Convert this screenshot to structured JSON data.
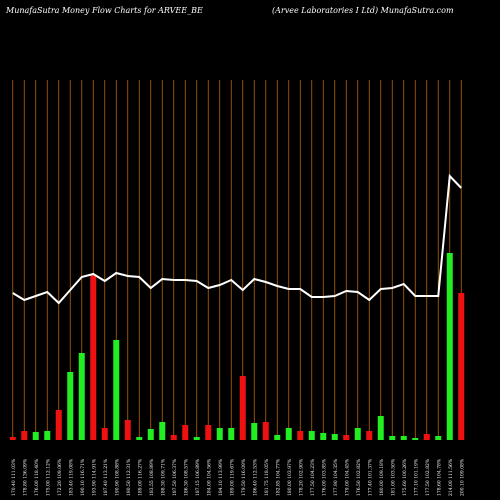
{
  "chart_data": {
    "type": "bar",
    "title": "MunafaSutra  Money Flow  Charts for ARVEE_BE",
    "subtitle": "(Arvee   Laboratories I Ltd) MunafaSutra.com",
    "categories": [
      "170.40 111.03%",
      "178.80 136.09%",
      "176.00 118.40%",
      "175.00 112.12%",
      "172.20 109.06%",
      "183.40 119.08%",
      "190.10 116.71%",
      "193.90 114.91%",
      "187.40 113.21%",
      "190.90 108.88%",
      "190.50 112.31%",
      "189.00 116.27%",
      "183.55 108.89%",
      "188.30 109.71%",
      "187.50 106.37%",
      "186.30 108.57%",
      "187.15 106.89%",
      "184.00 104.56%",
      "184.10 113.99%",
      "189.00 119.67%",
      "179.50 116.09%",
      "186.40 112.53%",
      "181.75 118.05%",
      "182.85 104.77%",
      "180.00 103.97%",
      "178.20 102.90%",
      "177.50 104.23%",
      "176.00 103.85%",
      "177.90 104.35%",
      "179.00 104.45%",
      "176.50 102.82%",
      "177.40 101.37%",
      "180.00 109.18%",
      "181.00 103.50%",
      "175.60 100.26%",
      "177.10 101.19%",
      "177.50 102.82%",
      "178.60 104.78%",
      "214.00 111.56%",
      "200.10 109.08%"
    ],
    "series": [
      {
        "name": "Money Flow",
        "color": "#22ee22",
        "down_color": "#ee1111",
        "values": [
          3,
          9,
          8,
          9,
          30,
          68,
          87,
          165,
          12,
          100,
          20,
          3,
          11,
          18,
          5,
          15,
          3,
          15,
          12,
          12,
          64,
          17,
          18,
          5,
          12,
          9,
          9,
          7,
          6,
          5,
          12,
          9,
          24,
          4,
          4,
          2,
          6,
          4,
          187,
          147
        ],
        "direction": [
          "down",
          "down",
          "up",
          "up",
          "down",
          "up",
          "up",
          "down",
          "down",
          "up",
          "down",
          "up",
          "up",
          "up",
          "down",
          "down",
          "up",
          "down",
          "up",
          "up",
          "down",
          "up",
          "down",
          "up",
          "up",
          "down",
          "up",
          "up",
          "up",
          "down",
          "up",
          "down",
          "up",
          "up",
          "up",
          "up",
          "down",
          "up",
          "up",
          "down"
        ]
      },
      {
        "name": "Price",
        "type": "line",
        "color": "#ffffff",
        "values": [
          147,
          140,
          144,
          148,
          137,
          150,
          163,
          166,
          159,
          167,
          164,
          163,
          152,
          161,
          160,
          160,
          159,
          152,
          155,
          160,
          150,
          161,
          158,
          154,
          151,
          151,
          143,
          143,
          144,
          149,
          148,
          140,
          151,
          152,
          156,
          144,
          144,
          144,
          264,
          252
        ]
      }
    ],
    "ylim": [
      0,
      400
    ]
  }
}
